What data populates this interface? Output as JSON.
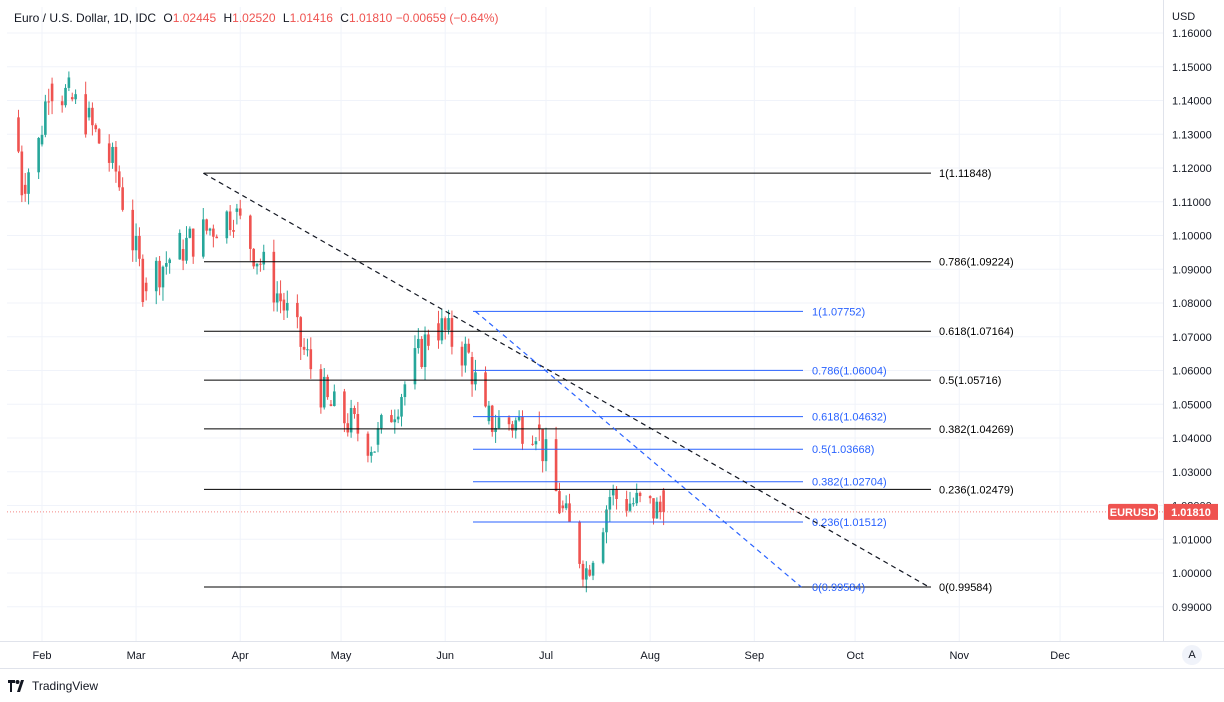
{
  "header": {
    "symbol_desc": "Euro / U.S. Dollar, 1D, IDC",
    "o_label": "O",
    "o_value": "1.02445",
    "h_label": "H",
    "h_value": "1.02520",
    "l_label": "L",
    "l_value": "1.01416",
    "c_label": "C",
    "c_value": "1.01810",
    "change": "−0.00659 (−0.64%)"
  },
  "price_axis": {
    "currency": "USD",
    "ticks": [
      "1.16000",
      "1.15000",
      "1.14000",
      "1.13000",
      "1.12000",
      "1.11000",
      "1.10000",
      "1.09000",
      "1.08000",
      "1.07000",
      "1.06000",
      "1.05000",
      "1.04000",
      "1.03000",
      "1.02000",
      "1.01000",
      "1.00000",
      "0.99000"
    ]
  },
  "time_axis": {
    "months": [
      "Feb",
      "Mar",
      "Apr",
      "May",
      "Jun",
      "Jul",
      "Aug",
      "Sep",
      "Oct",
      "Nov",
      "Dec"
    ]
  },
  "current_price": {
    "symbol": "EURUSD",
    "value": "1.01810",
    "color": "#ef5350"
  },
  "auto_label": "A",
  "branding": "TradingView",
  "colors": {
    "up": "#26a69a",
    "down": "#ef5350",
    "fib_major": "#000000",
    "fib_minor": "#2962ff",
    "trend_major": "#131722",
    "trend_minor": "#2962ff",
    "grid": "#f0f3fa"
  },
  "chart_data": {
    "type": "candlestick",
    "title": "Euro / U.S. Dollar, 1D, IDC",
    "ylabel": "USD",
    "ylim": [
      0.985,
      1.165
    ],
    "grid": true,
    "x_range": [
      "2022-01-25",
      "2023-01-02"
    ],
    "candles_ohlc_approx": [
      [
        "2022-01-25",
        1.13,
        1.136,
        1.127,
        1.135
      ],
      [
        "2022-01-27",
        1.128,
        1.13,
        1.114,
        1.115
      ],
      [
        "2022-02-01",
        1.123,
        1.13,
        1.12,
        1.127
      ],
      [
        "2022-02-04",
        1.144,
        1.148,
        1.141,
        1.145
      ],
      [
        "2022-02-10",
        1.142,
        1.149,
        1.138,
        1.141
      ],
      [
        "2022-02-15",
        1.131,
        1.137,
        1.128,
        1.135
      ],
      [
        "2022-02-24",
        1.122,
        1.124,
        1.111,
        1.119
      ],
      [
        "2022-03-04",
        1.093,
        1.096,
        1.081,
        1.086
      ],
      [
        "2022-03-15",
        1.094,
        1.1,
        1.092,
        1.096
      ],
      [
        "2022-03-31",
        1.116,
        1.118,
        1.106,
        1.107
      ],
      [
        "2022-04-14",
        1.083,
        1.093,
        1.076,
        1.081
      ],
      [
        "2022-04-28",
        1.056,
        1.058,
        1.047,
        1.05
      ],
      [
        "2022-05-12",
        1.051,
        1.052,
        1.035,
        1.038
      ],
      [
        "2022-05-30",
        1.073,
        1.079,
        1.072,
        1.074
      ],
      [
        "2022-06-09",
        1.072,
        1.078,
        1.063,
        1.064
      ],
      [
        "2022-06-14",
        1.042,
        1.047,
        1.036,
        1.045
      ],
      [
        "2022-06-29",
        1.052,
        1.053,
        1.043,
        1.044
      ],
      [
        "2022-07-06",
        1.026,
        1.028,
        1.018,
        1.02
      ],
      [
        "2022-07-14",
        1.002,
        1.006,
        0.996,
        1.001
      ],
      [
        "2022-07-21",
        1.018,
        1.028,
        1.015,
        1.023
      ],
      [
        "2022-08-05",
        1.0245,
        1.0252,
        1.0142,
        1.0181
      ]
    ],
    "fibonacci_large": {
      "color": "#000000",
      "levels": [
        {
          "label": "1(1.11848)",
          "price": 1.11848
        },
        {
          "label": "0.786(1.09224)",
          "price": 1.09224
        },
        {
          "label": "0.618(1.07164)",
          "price": 1.07164
        },
        {
          "label": "0.5(1.05716)",
          "price": 1.05716
        },
        {
          "label": "0.382(1.04269)",
          "price": 1.04269
        },
        {
          "label": "0.236(1.02479)",
          "price": 1.02479
        },
        {
          "label": "0(0.99584)",
          "price": 0.99584
        }
      ]
    },
    "fibonacci_small": {
      "color": "#2962ff",
      "levels": [
        {
          "label": "1(1.07752)",
          "price": 1.07752
        },
        {
          "label": "0.786(1.06004)",
          "price": 1.06004
        },
        {
          "label": "0.618(1.04632)",
          "price": 1.04632
        },
        {
          "label": "0.5(1.03668)",
          "price": 1.03668
        },
        {
          "label": "0.382(1.02704)",
          "price": 1.02704
        },
        {
          "label": "0.236(1.01512)",
          "price": 1.01512
        },
        {
          "label": "0(0.99584)",
          "price": 0.99584
        }
      ]
    },
    "trendlines": [
      {
        "style": "dashed",
        "color": "#131722",
        "from": [
          "2022-03-21",
          1.11848
        ],
        "to": [
          "2022-10-23",
          0.99584
        ]
      },
      {
        "style": "dashed",
        "color": "#2962ff",
        "from": [
          "2022-06-10",
          1.07752
        ],
        "to": [
          "2022-09-15",
          0.99584
        ]
      }
    ]
  }
}
